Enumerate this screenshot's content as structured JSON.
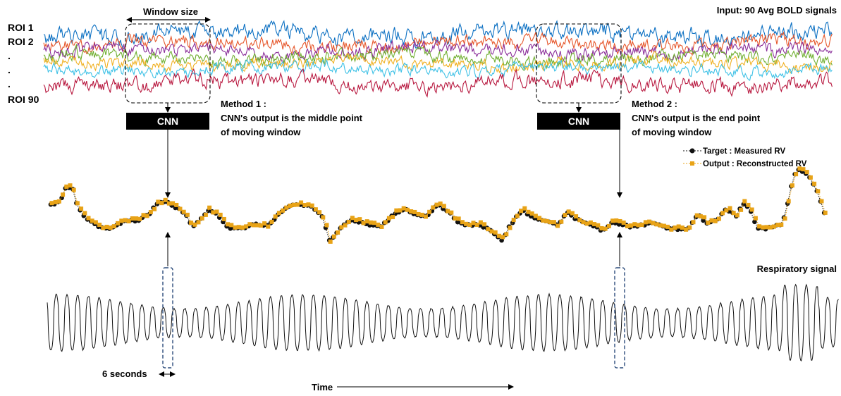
{
  "input_label": "Input: 90 Avg BOLD signals",
  "window_size_label": "Window size",
  "roi_labels": [
    "ROI 1",
    "ROI 2",
    ".",
    ".",
    ".",
    "ROI 90"
  ],
  "method1": {
    "title": "Method 1 :",
    "line1": "CNN's output is the middle point",
    "line2": "of moving window"
  },
  "method2": {
    "title": "Method 2 :",
    "line1": "CNN's output is the end point",
    "line2": "of moving window"
  },
  "cnn_label": "CNN",
  "legend": {
    "target": "Target : Measured RV",
    "output": "Output : Reconstructed RV",
    "target_color": "#111111",
    "output_color": "#E8A317"
  },
  "respiratory_label": "Respiratory signal",
  "six_seconds_label": "6 seconds",
  "time_label": "Time",
  "bold_colors": [
    "#0a6fc2",
    "#e6562a",
    "#8b2f9a",
    "#6fae2f",
    "#f0b020",
    "#3ec1e6",
    "#b8183f"
  ]
}
